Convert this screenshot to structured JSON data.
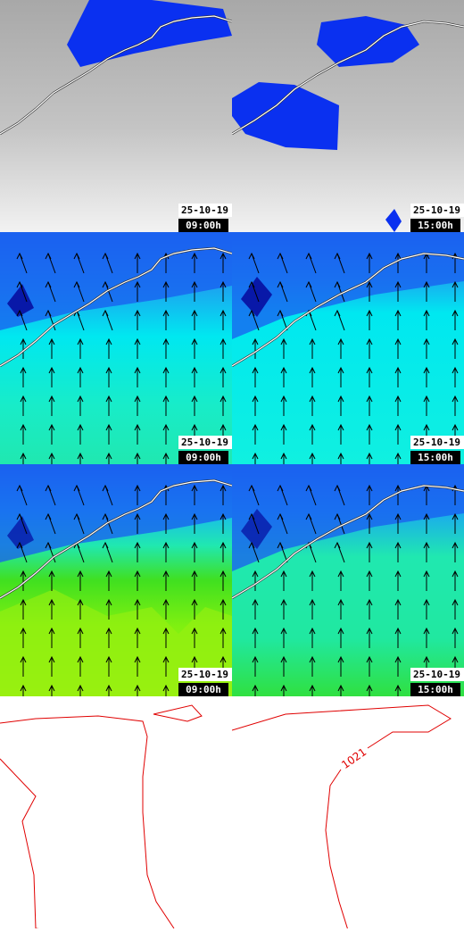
{
  "panels": [
    {
      "date": "25-10-19",
      "time": "09:00h"
    },
    {
      "date": "25-10-19",
      "time": "15:00h"
    },
    {
      "date": "25-10-19",
      "time": "09:00h"
    },
    {
      "date": "25-10-19",
      "time": "15:00h"
    },
    {
      "date": "25-10-19",
      "time": "09:00h"
    },
    {
      "date": "25-10-19",
      "time": "15:00h"
    }
  ],
  "isobar_label": "1021"
}
